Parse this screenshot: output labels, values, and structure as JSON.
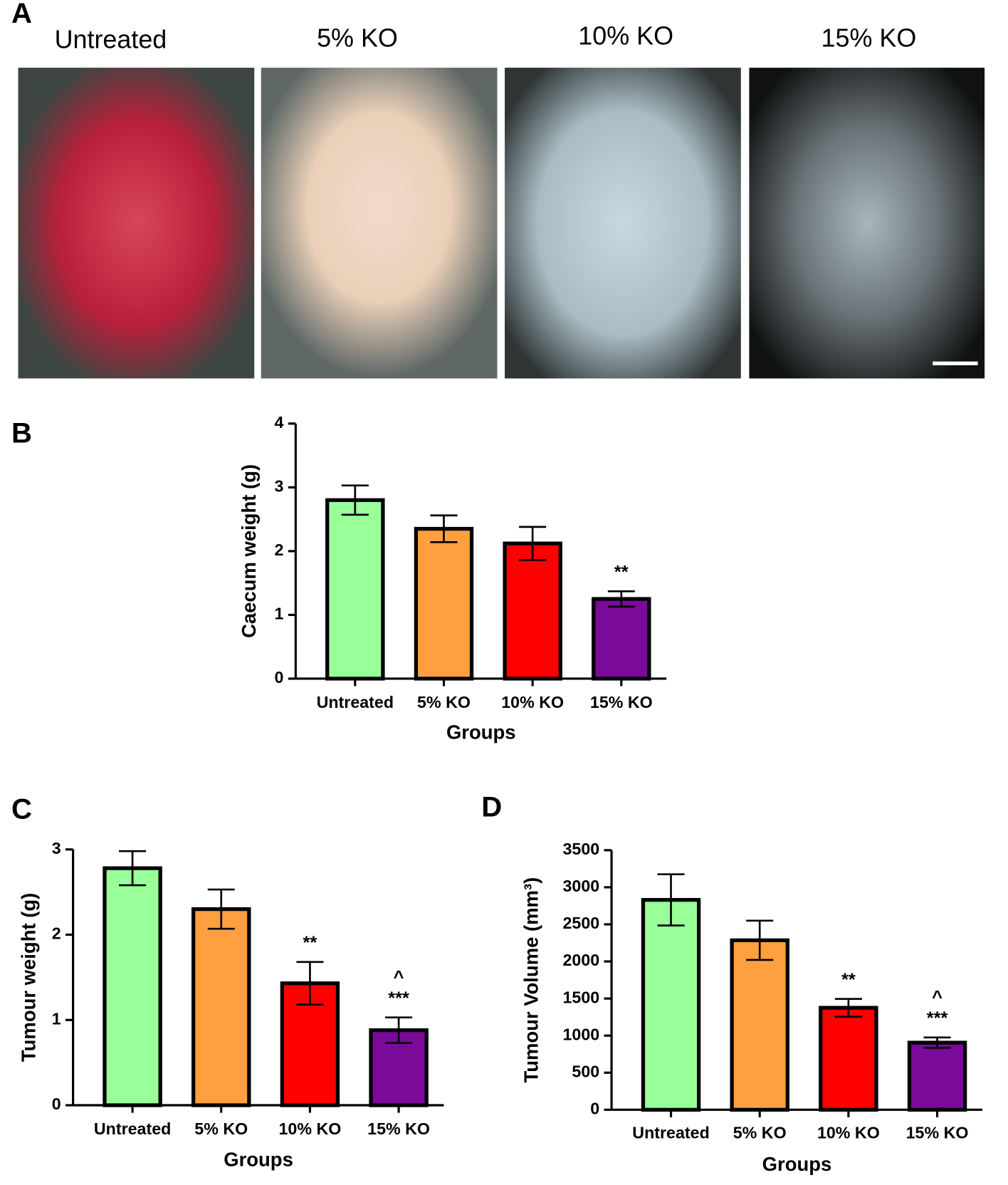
{
  "figure": {
    "panel_labels": [
      "A",
      "B",
      "C",
      "D"
    ],
    "photo_captions": [
      "Untreated",
      "5% KO",
      "10% KO",
      "15% KO"
    ]
  },
  "chart_data": [
    {
      "type": "bar",
      "categories": [
        "Untreated",
        "5% KO",
        "10% KO",
        "15% KO"
      ],
      "values": [
        2.8,
        2.35,
        2.12,
        1.25
      ],
      "errors": [
        0.23,
        0.21,
        0.26,
        0.12
      ],
      "colors": [
        "#99ff99",
        "#ffa040",
        "#ff0000",
        "#7a0a99"
      ],
      "ylim": [
        0,
        4
      ],
      "yticks": [
        0,
        1,
        2,
        3,
        4
      ],
      "xlabel": "Groups",
      "ylabel": "Caecum weight (g)",
      "annotations": [
        {
          "category": "15% KO",
          "text": "**"
        }
      ]
    },
    {
      "type": "bar",
      "categories": [
        "Untreated",
        "5% KO",
        "10% KO",
        "15% KO"
      ],
      "values": [
        2.78,
        2.3,
        1.43,
        0.88
      ],
      "errors": [
        0.2,
        0.23,
        0.25,
        0.15
      ],
      "colors": [
        "#99ff99",
        "#ffa040",
        "#ff0000",
        "#7a0a99"
      ],
      "ylim": [
        0,
        3
      ],
      "yticks": [
        0,
        1,
        2,
        3
      ],
      "xlabel": "Groups",
      "ylabel": "Tumour weight (g)",
      "annotations": [
        {
          "category": "10% KO",
          "text": "**"
        },
        {
          "category": "15% KO",
          "text": "***"
        },
        {
          "category": "15% KO",
          "text": "^"
        }
      ]
    },
    {
      "type": "bar",
      "categories": [
        "Untreated",
        "5% KO",
        "10% KO",
        "15% KO"
      ],
      "values": [
        2830,
        2285,
        1375,
        905
      ],
      "errors": [
        345,
        265,
        120,
        70
      ],
      "colors": [
        "#99ff99",
        "#ffa040",
        "#ff0000",
        "#7a0a99"
      ],
      "ylim": [
        0,
        3500
      ],
      "yticks": [
        0,
        500,
        1000,
        1500,
        2000,
        2500,
        3000,
        3500
      ],
      "xlabel": "Groups",
      "ylabel": "Tumour Volume (mm³)",
      "annotations": [
        {
          "category": "10% KO",
          "text": "**"
        },
        {
          "category": "15% KO",
          "text": "***"
        },
        {
          "category": "15% KO",
          "text": "^"
        }
      ]
    }
  ]
}
